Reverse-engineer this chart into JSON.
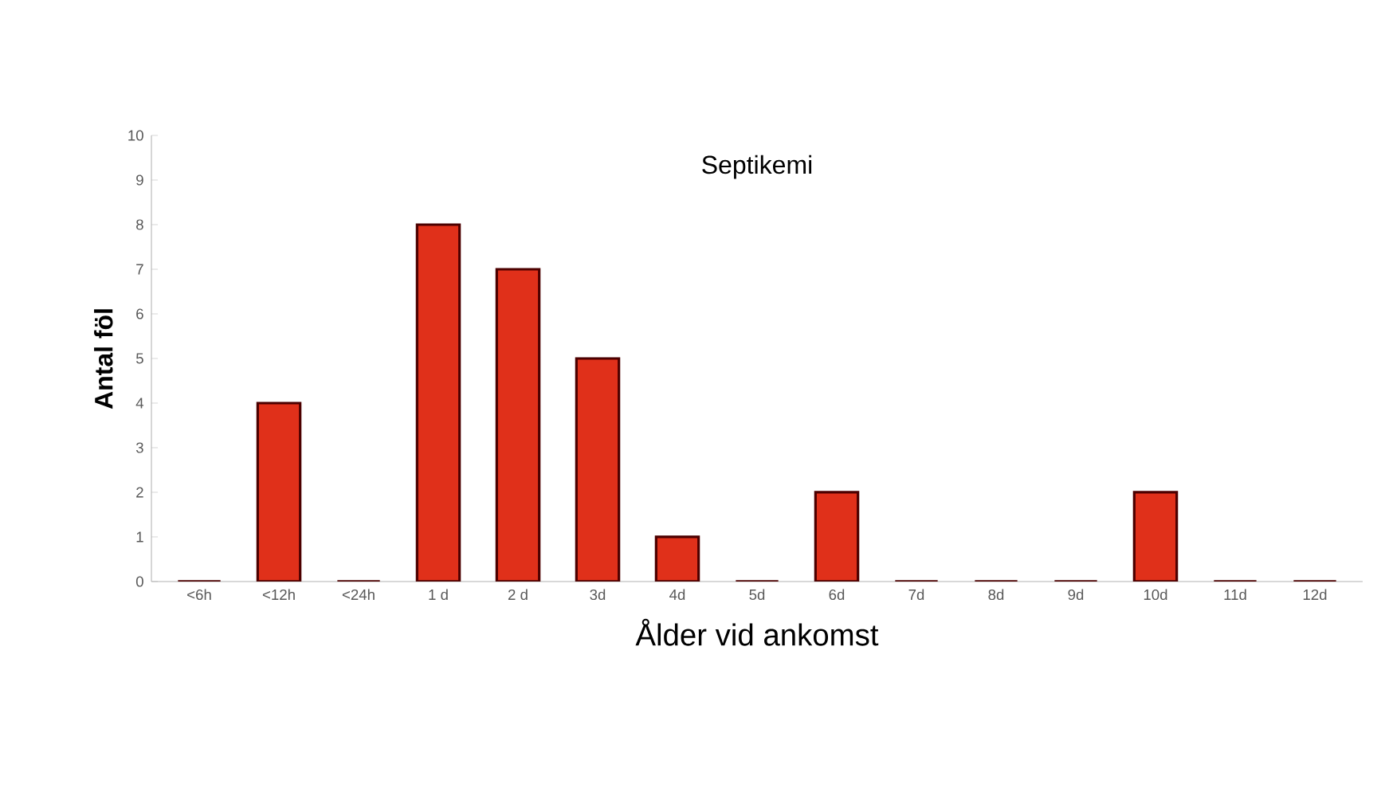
{
  "chart_data": {
    "type": "bar",
    "title": "Septikemi",
    "xlabel": "Ålder vid ankomst",
    "ylabel": "Antal föl",
    "categories": [
      "<6h",
      "<12h",
      "<24h",
      "1 d",
      "2 d",
      "3d",
      "4d",
      "5d",
      "6d",
      "7d",
      "8d",
      "9d",
      "10d",
      "11d",
      "12d"
    ],
    "values": [
      0,
      4,
      0,
      8,
      7,
      5,
      1,
      0,
      2,
      0,
      0,
      0,
      2,
      0,
      0
    ],
    "color": "#e0301a",
    "ylim": [
      0,
      10
    ],
    "yticks": [
      0,
      1,
      2,
      3,
      4,
      5,
      6,
      7,
      8,
      9,
      10
    ],
    "grid": false
  }
}
